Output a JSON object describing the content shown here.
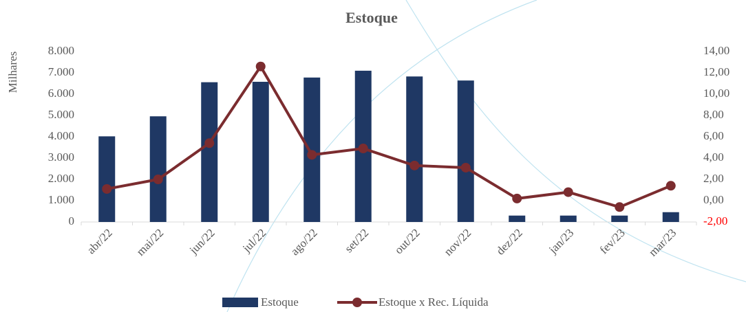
{
  "chart_data": {
    "type": "bar",
    "title": "Estoque",
    "y_axis_label": "Milhares",
    "categories": [
      "abr/22",
      "mai/22",
      "jun/22",
      "jul/22",
      "ago/22",
      "set/22",
      "out/22",
      "nov/22",
      "dez/22",
      "jan/23",
      "fev/23",
      "mar/23"
    ],
    "series": [
      {
        "name": "Estoque",
        "type": "bar",
        "color": "#1f3864",
        "values": [
          4020,
          4960,
          6560,
          6580,
          6780,
          7100,
          6830,
          6640,
          300,
          300,
          300,
          460
        ]
      },
      {
        "name": "Estoque x Rec. Líquida",
        "type": "line",
        "axis": "y2",
        "color": "#7b2c2f",
        "values": [
          1.1,
          2.0,
          5.4,
          12.6,
          4.3,
          4.9,
          3.3,
          3.1,
          0.2,
          0.8,
          -0.6,
          1.4
        ]
      }
    ],
    "ylim": [
      0,
      8000
    ],
    "yticks": [
      0,
      {
        "value": 1000,
        "label": "1.000"
      },
      {
        "value": 2000,
        "label": "2.000"
      },
      {
        "value": 3000,
        "label": "3.000"
      },
      {
        "value": 4000,
        "label": "4.000"
      },
      {
        "value": 5000,
        "label": "5.000"
      },
      {
        "value": 6000,
        "label": "6.000"
      },
      {
        "value": 7000,
        "label": "7.000"
      },
      {
        "value": 8000,
        "label": "8.000"
      }
    ],
    "y2lim": [
      -2,
      14
    ],
    "y2ticks": [
      {
        "value": -2,
        "label": "-2,00"
      },
      {
        "value": 0,
        "label": "0,00"
      },
      {
        "value": 2,
        "label": "2,00"
      },
      {
        "value": 4,
        "label": "4,00"
      },
      {
        "value": 6,
        "label": "6,00"
      },
      {
        "value": 8,
        "label": "8,00"
      },
      {
        "value": 10,
        "label": "10,00"
      },
      {
        "value": 12,
        "label": "12,00"
      },
      {
        "value": 14,
        "label": "14,00"
      }
    ],
    "y2_negative_tick_color": "#ff0000",
    "grid": false
  }
}
